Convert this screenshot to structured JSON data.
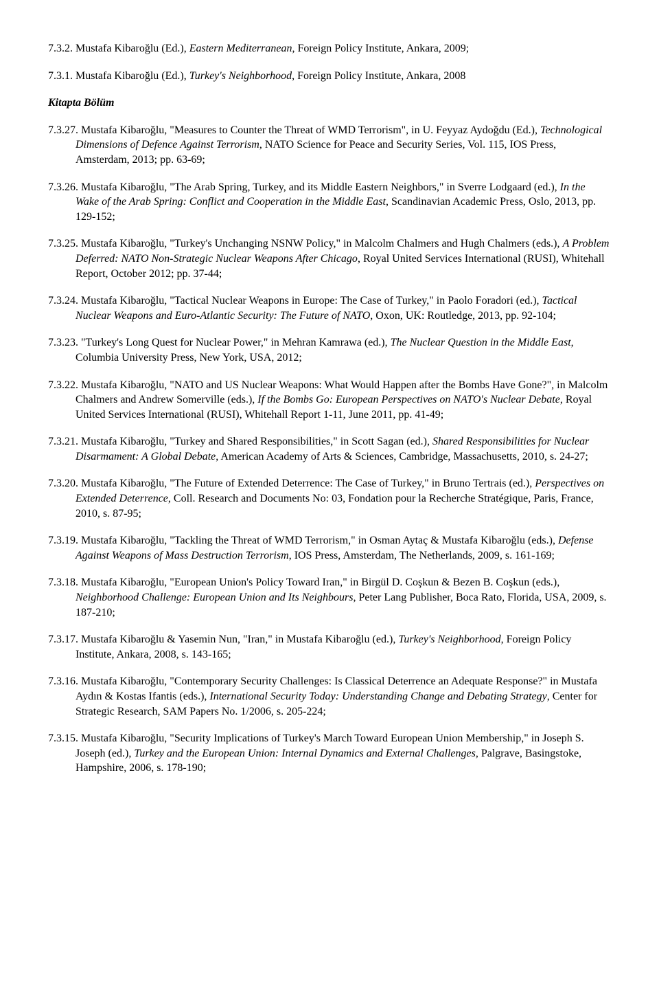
{
  "entries": [
    {
      "num": "7.3.2.",
      "segments": [
        {
          "t": " Mustafa Kibaroğlu (Ed.), "
        },
        {
          "t": "Eastern Mediterranean",
          "i": true
        },
        {
          "t": ", Foreign Policy Institute, Ankara, 2009;"
        }
      ]
    },
    {
      "num": "7.3.1.",
      "segments": [
        {
          "t": " Mustafa Kibaroğlu (Ed.), "
        },
        {
          "t": "Turkey's Neighborhood",
          "i": true
        },
        {
          "t": ", Foreign Policy Institute, Ankara, 2008"
        }
      ]
    },
    {
      "heading": "Kitapta Bölüm"
    },
    {
      "num": "7.3.27.",
      "segments": [
        {
          "t": " Mustafa Kibaroğlu, \"Measures to Counter the Threat of WMD Terrorism\", in U. Feyyaz Aydoğdu (Ed.), "
        },
        {
          "t": "Technological Dimensions of Defence Against Terrorism",
          "i": true
        },
        {
          "t": ", NATO Science for Peace and Security Series, Vol. 115, IOS Press, Amsterdam, 2013; pp. 63-69;"
        }
      ]
    },
    {
      "num": "7.3.26.",
      "segments": [
        {
          "t": " Mustafa Kibaroğlu, \"The Arab Spring, Turkey, and its Middle Eastern Neighbors,\" in Sverre Lodgaard (ed.), "
        },
        {
          "t": "In the Wake of the Arab Spring: Conflict and Cooperation in the Middle East",
          "i": true
        },
        {
          "t": ", Scandinavian Academic Press, Oslo, 2013, pp. 129-152;"
        }
      ]
    },
    {
      "num": "7.3.25.",
      "segments": [
        {
          "t": " Mustafa Kibaroğlu, \"Turkey's Unchanging NSNW Policy,\" in Malcolm Chalmers and Hugh Chalmers (eds.), "
        },
        {
          "t": "A Problem Deferred: NATO Non-Strategic Nuclear Weapons After Chicago",
          "i": true
        },
        {
          "t": ", Royal United Services International (RUSI), Whitehall Report, October 2012; pp. 37-44;"
        }
      ]
    },
    {
      "num": "7.3.24.",
      "segments": [
        {
          "t": " Mustafa Kibaroğlu, \"Tactical Nuclear Weapons in Europe: The Case of Turkey,\" in Paolo Foradori (ed.), "
        },
        {
          "t": "Tactical Nuclear Weapons and Euro-Atlantic Security: The Future of NATO",
          "i": true
        },
        {
          "t": ", Oxon, UK: Routledge, 2013, pp. 92-104;"
        }
      ]
    },
    {
      "num": "7.3.23.",
      "segments": [
        {
          "t": " \"Turkey's Long Quest for Nuclear Power,\" in Mehran Kamrawa (ed.), "
        },
        {
          "t": "The Nuclear Question in the Middle East",
          "i": true
        },
        {
          "t": ", Columbia University Press, New York, USA, 2012;"
        }
      ]
    },
    {
      "num": "7.3.22.",
      "segments": [
        {
          "t": " Mustafa Kibaroğlu, \"NATO and US Nuclear Weapons: What Would Happen after the Bombs Have Gone?\", in Malcolm Chalmers and Andrew Somerville (eds.), "
        },
        {
          "t": "If the Bombs Go: European Perspectives on NATO's Nuclear Debate",
          "i": true
        },
        {
          "t": ", Royal United Services International (RUSI), Whitehall Report 1-11, June 2011, pp. 41-49;"
        }
      ]
    },
    {
      "num": "7.3.21.",
      "segments": [
        {
          "t": " Mustafa Kibaroğlu, \"Turkey and Shared Responsibilities,\" in Scott Sagan (ed.), "
        },
        {
          "t": "Shared Responsibilities for Nuclear Disarmament: A Global Debate",
          "i": true
        },
        {
          "t": ", American Academy of Arts & Sciences, Cambridge, Massachusetts, 2010, s. 24-27;"
        }
      ]
    },
    {
      "num": "7.3.20.",
      "segments": [
        {
          "t": " Mustafa Kibaroğlu, \"The Future of Extended Deterrence: The Case of Turkey,\" in Bruno Tertrais (ed.), "
        },
        {
          "t": "Perspectives on Extended Deterrence",
          "i": true
        },
        {
          "t": ", Coll. Research and Documents No: 03, Fondation pour la Recherche Stratégique, Paris, France, 2010, s. 87-95;"
        }
      ]
    },
    {
      "num": "7.3.19.",
      "segments": [
        {
          "t": " Mustafa Kibaroğlu, \"Tackling the Threat of WMD Terrorism,\" in Osman Aytaç & Mustafa Kibaroğlu (eds.), "
        },
        {
          "t": "Defense Against Weapons of Mass Destruction Terrorism",
          "i": true
        },
        {
          "t": ", IOS Press, Amsterdam, The Netherlands, 2009, s. 161-169;"
        }
      ]
    },
    {
      "num": "7.3.18.",
      "segments": [
        {
          "t": " Mustafa Kibaroğlu, \"European Union's Policy Toward Iran,\" in Birgül D. Coşkun & Bezen B. Coşkun (eds.), "
        },
        {
          "t": "Neighborhood Challenge: European Union and Its Neighbours",
          "i": true
        },
        {
          "t": ", Peter Lang Publisher, Boca Rato, Florida, USA, 2009, s. 187-210;"
        }
      ]
    },
    {
      "num": "7.3.17.",
      "segments": [
        {
          "t": " Mustafa Kibaroğlu & Yasemin Nun,  \"Iran,\" in Mustafa Kibaroğlu (ed.), "
        },
        {
          "t": "Turkey's Neighborhood",
          "i": true
        },
        {
          "t": ", Foreign Policy Institute, Ankara, 2008, s. 143-165;"
        }
      ]
    },
    {
      "num": "7.3.16.",
      "segments": [
        {
          "t": " Mustafa Kibaroğlu, \"Contemporary Security Challenges: Is Classical Deterrence an Adequate Response?\" in Mustafa Aydın & Kostas Ifantis (eds.), "
        },
        {
          "t": "International Security Today: Understanding Change and Debating Strategy",
          "i": true
        },
        {
          "t": ", Center for Strategic Research, SAM Papers No. 1/2006, s. 205-224;"
        }
      ]
    },
    {
      "num": "7.3.15.",
      "segments": [
        {
          "t": " Mustafa Kibaroğlu, \"Security Implications of Turkey's March Toward European Union Membership,\" in Joseph S. Joseph (ed.), "
        },
        {
          "t": "Turkey and the European Union:  Internal Dynamics and External Challenges",
          "i": true
        },
        {
          "t": ", Palgrave, Basingstoke, Hampshire, 2006, s. 178-190;"
        }
      ]
    }
  ]
}
